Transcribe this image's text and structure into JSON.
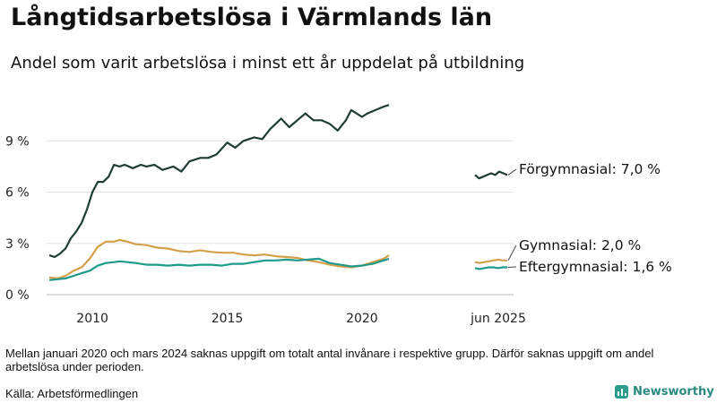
{
  "header": {
    "title": "Långtidsarbetslösa i Värmlands län",
    "subtitle": "Andel som varit arbetslösa i minst ett år uppdelat på utbildning"
  },
  "footer": {
    "note": "Mellan januari 2020 och mars 2024 saknas uppgift om totalt antal invånare i respektive grupp. Därför saknas uppgift om andel arbetslösa under perioden.",
    "source": "Källa: Arbetsförmedlingen",
    "brand": "Newsworthy"
  },
  "chart_data": {
    "type": "line",
    "title": "Långtidsarbetslösa i Värmlands län",
    "subtitle": "Andel som varit arbetslösa i minst ett år uppdelat på utbildning",
    "xlabel": "",
    "ylabel": "",
    "ylim": [
      0,
      12
    ],
    "xlim": [
      2008.3,
      2021.2
    ],
    "yticks": [
      0,
      3,
      6,
      9
    ],
    "ytick_labels": [
      "0 %",
      "3 %",
      "6 %",
      "9 %"
    ],
    "xticks": [
      2010,
      2015,
      2020
    ],
    "xtick_labels": [
      "2010",
      "2015",
      "2020"
    ],
    "recent_label": "jun 2025",
    "grid": true,
    "series": [
      {
        "name": "Förgymnasial",
        "label": "Förgymnasial: 7,0 %",
        "color": "#1f3d36",
        "x": [
          2008.4,
          2008.6,
          2008.8,
          2009.0,
          2009.2,
          2009.4,
          2009.6,
          2009.8,
          2010.0,
          2010.2,
          2010.4,
          2010.6,
          2010.8,
          2011.0,
          2011.2,
          2011.5,
          2011.8,
          2012.0,
          2012.3,
          2012.6,
          2013.0,
          2013.3,
          2013.6,
          2014.0,
          2014.3,
          2014.6,
          2015.0,
          2015.3,
          2015.6,
          2016.0,
          2016.3,
          2016.6,
          2017.0,
          2017.3,
          2017.6,
          2017.9,
          2018.2,
          2018.5,
          2018.8,
          2019.1,
          2019.4,
          2019.6,
          2019.8,
          2020.0,
          2020.2,
          2020.5,
          2020.8,
          2021.0
        ],
        "values": [
          2.3,
          2.2,
          2.4,
          2.7,
          3.3,
          3.7,
          4.2,
          5.0,
          6.0,
          6.6,
          6.6,
          6.9,
          7.6,
          7.5,
          7.6,
          7.4,
          7.6,
          7.5,
          7.6,
          7.3,
          7.5,
          7.2,
          7.8,
          8.0,
          8.0,
          8.2,
          8.9,
          8.6,
          9.0,
          9.2,
          9.1,
          9.7,
          10.3,
          9.8,
          10.2,
          10.6,
          10.2,
          10.2,
          10.0,
          9.6,
          10.2,
          10.8,
          10.6,
          10.4,
          10.6,
          10.8,
          11.0,
          11.1
        ],
        "recent": [
          7.0,
          6.8,
          6.9,
          7.0,
          7.1,
          7.0,
          7.2,
          7.1,
          7.0
        ]
      },
      {
        "name": "Gymnasial",
        "label": "Gymnasial: 2,0 %",
        "color": "#d4a04a",
        "x": [
          2008.4,
          2008.7,
          2009.0,
          2009.3,
          2009.6,
          2009.9,
          2010.2,
          2010.5,
          2010.8,
          2011.0,
          2011.3,
          2011.6,
          2012.0,
          2012.4,
          2012.8,
          2013.2,
          2013.6,
          2014.0,
          2014.4,
          2014.8,
          2015.2,
          2015.6,
          2016.0,
          2016.4,
          2016.8,
          2017.2,
          2017.6,
          2018.0,
          2018.4,
          2018.8,
          2019.2,
          2019.6,
          2020.0,
          2020.4,
          2020.8,
          2021.0
        ],
        "values": [
          1.0,
          0.95,
          1.1,
          1.4,
          1.6,
          2.1,
          2.8,
          3.1,
          3.1,
          3.2,
          3.1,
          2.95,
          2.9,
          2.75,
          2.7,
          2.55,
          2.5,
          2.6,
          2.5,
          2.45,
          2.45,
          2.35,
          2.3,
          2.35,
          2.25,
          2.2,
          2.15,
          2.0,
          1.9,
          1.75,
          1.65,
          1.6,
          1.7,
          1.9,
          2.1,
          2.3
        ],
        "recent": [
          1.9,
          1.85,
          1.9,
          1.95,
          2.0,
          2.05,
          2.0,
          2.0
        ]
      },
      {
        "name": "Eftergymnasial",
        "label": "Eftergymnasial: 1,6 %",
        "color": "#1f9a8a",
        "x": [
          2008.4,
          2008.7,
          2009.0,
          2009.3,
          2009.6,
          2009.9,
          2010.2,
          2010.5,
          2010.8,
          2011.0,
          2011.3,
          2011.6,
          2012.0,
          2012.4,
          2012.8,
          2013.2,
          2013.6,
          2014.0,
          2014.4,
          2014.8,
          2015.2,
          2015.6,
          2016.0,
          2016.4,
          2016.8,
          2017.2,
          2017.6,
          2018.0,
          2018.4,
          2018.8,
          2019.2,
          2019.6,
          2020.0,
          2020.4,
          2020.8,
          2021.0
        ],
        "values": [
          0.85,
          0.9,
          0.95,
          1.1,
          1.25,
          1.4,
          1.7,
          1.85,
          1.9,
          1.95,
          1.9,
          1.85,
          1.75,
          1.75,
          1.7,
          1.75,
          1.7,
          1.75,
          1.75,
          1.7,
          1.8,
          1.8,
          1.9,
          2.0,
          2.0,
          2.05,
          2.0,
          2.05,
          2.1,
          1.85,
          1.75,
          1.65,
          1.7,
          1.8,
          2.0,
          2.1
        ],
        "recent": [
          1.55,
          1.5,
          1.55,
          1.6,
          1.6,
          1.55,
          1.6,
          1.6
        ]
      }
    ]
  }
}
